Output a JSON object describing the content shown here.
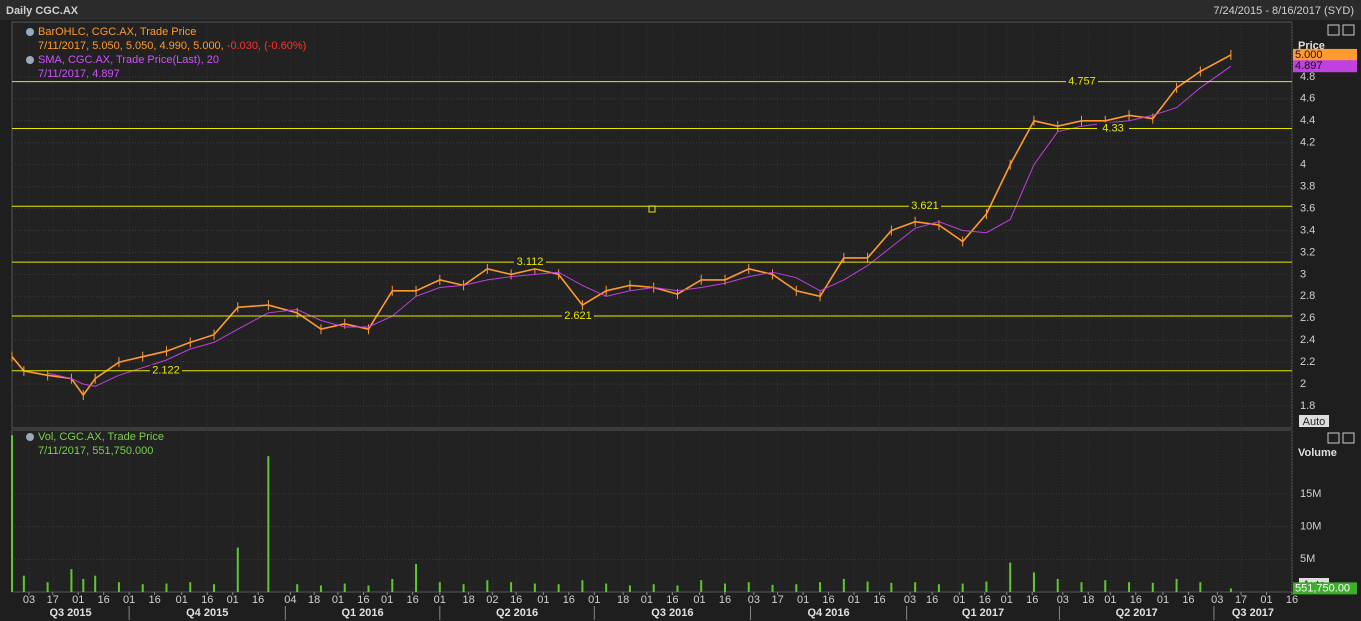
{
  "header": {
    "title": "Daily CGC.AX",
    "range": "7/24/2015 - 8/16/2017 (SYD)"
  },
  "chart_data": [
    {
      "type": "line",
      "y_label": "Price",
      "auto": "Auto",
      "xlim": [
        "7/24/2015",
        "8/16/2017"
      ],
      "x": [
        "7/24/2015",
        "7/31/2015",
        "8/14/2015",
        "8/28/2015",
        "9/4/2015",
        "9/11/2015",
        "9/25/2015",
        "10/9/2015",
        "10/23/2015",
        "11/6/2015",
        "11/20/2015",
        "12/4/2015",
        "12/22/2015",
        "1/8/2016",
        "1/22/2016",
        "2/5/2016",
        "2/19/2016",
        "3/4/2016",
        "3/18/2016",
        "4/1/2016",
        "4/15/2016",
        "4/29/2016",
        "5/13/2016",
        "5/27/2016",
        "6/10/2016",
        "6/24/2016",
        "7/8/2016",
        "7/22/2016",
        "8/5/2016",
        "8/19/2016",
        "9/2/2016",
        "9/16/2016",
        "9/30/2016",
        "10/14/2016",
        "10/28/2016",
        "11/11/2016",
        "11/25/2016",
        "12/9/2016",
        "12/23/2016",
        "1/6/2017",
        "1/20/2017",
        "2/3/2017",
        "2/17/2017",
        "3/3/2017",
        "3/17/2017",
        "3/31/2017",
        "4/14/2017",
        "4/28/2017",
        "5/12/2017",
        "5/26/2017",
        "6/9/2017",
        "6/23/2017",
        "7/11/2017"
      ],
      "series": [
        {
          "name": "BarOHLC, CGC.AX, Trade Price",
          "color": "#ff9a2e",
          "readout": "7/11/2017, 5.050, 5.050, 4.990, 5.000,",
          "change": "-0.030, (-0.60%)",
          "last_label": "5.000",
          "values": [
            2.25,
            2.12,
            2.08,
            2.05,
            1.9,
            2.05,
            2.2,
            2.25,
            2.3,
            2.38,
            2.45,
            2.7,
            2.72,
            2.65,
            2.5,
            2.55,
            2.5,
            2.85,
            2.85,
            2.95,
            2.9,
            3.05,
            3.0,
            3.05,
            3.0,
            2.72,
            2.85,
            2.9,
            2.88,
            2.82,
            2.95,
            2.95,
            3.05,
            3.0,
            2.85,
            2.8,
            3.15,
            3.15,
            3.4,
            3.48,
            3.45,
            3.3,
            3.55,
            4.0,
            4.4,
            4.35,
            4.4,
            4.4,
            4.45,
            4.42,
            4.7,
            4.85,
            5.0
          ]
        },
        {
          "name": "SMA, CGC.AX, Trade Price(Last), 20",
          "color": "#c040e0",
          "readout": "7/11/2017, 4.897",
          "last_label": "4.897",
          "values": [
            null,
            null,
            2.1,
            2.05,
            2.0,
            1.98,
            2.08,
            2.15,
            2.22,
            2.32,
            2.38,
            2.5,
            2.65,
            2.68,
            2.58,
            2.52,
            2.52,
            2.62,
            2.8,
            2.88,
            2.9,
            2.95,
            2.98,
            3.0,
            3.02,
            2.9,
            2.8,
            2.85,
            2.88,
            2.85,
            2.88,
            2.92,
            2.98,
            3.02,
            2.97,
            2.85,
            2.95,
            3.08,
            3.25,
            3.42,
            3.48,
            3.4,
            3.38,
            3.5,
            4.0,
            4.3,
            4.35,
            4.38,
            4.4,
            4.45,
            4.52,
            4.7,
            4.897
          ]
        }
      ],
      "levels": [
        4.757,
        4.33,
        3.621,
        3.112,
        2.621,
        2.122
      ],
      "level_color": "#e8e800",
      "ylim": [
        1.6,
        5.3
      ],
      "yticks": [
        1.8,
        2,
        2.2,
        2.4,
        2.6,
        2.8,
        3,
        3.2,
        3.4,
        3.6,
        3.8,
        4,
        4.2,
        4.4,
        4.6,
        4.8
      ],
      "grid": true
    },
    {
      "type": "bar",
      "y_label": "Volume",
      "auto": "Auto",
      "xlim": [
        "7/24/2015",
        "8/16/2017"
      ],
      "x": [
        "7/24/2015",
        "7/31/2015",
        "8/14/2015",
        "8/28/2015",
        "9/4/2015",
        "9/11/2015",
        "9/25/2015",
        "10/9/2015",
        "10/23/2015",
        "11/6/2015",
        "11/20/2015",
        "12/4/2015",
        "12/22/2015",
        "1/8/2016",
        "1/22/2016",
        "2/5/2016",
        "2/19/2016",
        "3/4/2016",
        "3/18/2016",
        "4/1/2016",
        "4/15/2016",
        "4/29/2016",
        "5/13/2016",
        "5/27/2016",
        "6/10/2016",
        "6/24/2016",
        "7/8/2016",
        "7/22/2016",
        "8/5/2016",
        "8/19/2016",
        "9/2/2016",
        "9/16/2016",
        "9/30/2016",
        "10/14/2016",
        "10/28/2016",
        "11/11/2016",
        "11/25/2016",
        "12/9/2016",
        "12/23/2016",
        "1/6/2017",
        "1/20/2017",
        "2/3/2017",
        "2/17/2017",
        "3/3/2017",
        "3/17/2017",
        "3/31/2017",
        "4/14/2017",
        "4/28/2017",
        "5/12/2017",
        "5/26/2017",
        "6/9/2017",
        "6/23/2017",
        "7/11/2017"
      ],
      "series": [
        {
          "name": "Vol, CGC.AX, Trade Price",
          "color": "#5ec82e",
          "readout": "7/11/2017, 551,750.000",
          "last_label": "551,750.00",
          "values": [
            24000000,
            2500000,
            1500000,
            3500000,
            2000000,
            2500000,
            1500000,
            1200000,
            1300000,
            1500000,
            1200000,
            6800000,
            20800000,
            1200000,
            1000000,
            1300000,
            1000000,
            2000000,
            4300000,
            1500000,
            1200000,
            1800000,
            1500000,
            1300000,
            1200000,
            1800000,
            1300000,
            1000000,
            1200000,
            1000000,
            1800000,
            1300000,
            1500000,
            1100000,
            1200000,
            1500000,
            2000000,
            1600000,
            1400000,
            1500000,
            1200000,
            1300000,
            1600000,
            4500000,
            3000000,
            2000000,
            1500000,
            1800000,
            1500000,
            1400000,
            2000000,
            1500000,
            551750
          ]
        }
      ],
      "ylim": [
        0,
        24800000
      ],
      "yticks": [
        {
          "value": 5000000,
          "label": "5M"
        },
        {
          "value": 10000000,
          "label": "10M"
        },
        {
          "value": 15000000,
          "label": "15M"
        }
      ],
      "grid": true,
      "xticks": [
        {
          "value": "8/3/2015",
          "label": "03"
        },
        {
          "value": "8/17/2015",
          "label": "17"
        },
        {
          "value": "9/1/2015",
          "label": "01"
        },
        {
          "value": "9/16/2015",
          "label": "16"
        },
        {
          "value": "10/1/2015",
          "label": "01"
        },
        {
          "value": "10/16/2015",
          "label": "16"
        },
        {
          "value": "11/1/2015",
          "label": "01"
        },
        {
          "value": "11/16/2015",
          "label": "16"
        },
        {
          "value": "12/1/2015",
          "label": "01"
        },
        {
          "value": "12/16/2015",
          "label": "16"
        },
        {
          "value": "1/4/2016",
          "label": "04"
        },
        {
          "value": "1/18/2016",
          "label": "18"
        },
        {
          "value": "2/1/2016",
          "label": "01"
        },
        {
          "value": "2/16/2016",
          "label": "16"
        },
        {
          "value": "3/1/2016",
          "label": "01"
        },
        {
          "value": "3/16/2016",
          "label": "16"
        },
        {
          "value": "4/1/2016",
          "label": "01"
        },
        {
          "value": "4/18/2016",
          "label": "18"
        },
        {
          "value": "5/2/2016",
          "label": "02"
        },
        {
          "value": "5/16/2016",
          "label": "16"
        },
        {
          "value": "6/1/2016",
          "label": "01"
        },
        {
          "value": "6/16/2016",
          "label": "16"
        },
        {
          "value": "7/1/2016",
          "label": "01"
        },
        {
          "value": "7/18/2016",
          "label": "18"
        },
        {
          "value": "8/1/2016",
          "label": "01"
        },
        {
          "value": "8/16/2016",
          "label": "16"
        },
        {
          "value": "9/1/2016",
          "label": "01"
        },
        {
          "value": "9/16/2016",
          "label": "16"
        },
        {
          "value": "10/3/2016",
          "label": "03"
        },
        {
          "value": "10/17/2016",
          "label": "17"
        },
        {
          "value": "11/1/2016",
          "label": "01"
        },
        {
          "value": "11/16/2016",
          "label": "16"
        },
        {
          "value": "12/1/2016",
          "label": "01"
        },
        {
          "value": "12/16/2016",
          "label": "16"
        },
        {
          "value": "1/3/2017",
          "label": "03"
        },
        {
          "value": "1/16/2017",
          "label": "16"
        },
        {
          "value": "2/1/2017",
          "label": "01"
        },
        {
          "value": "2/16/2017",
          "label": "16"
        },
        {
          "value": "3/1/2017",
          "label": "01"
        },
        {
          "value": "3/16/2017",
          "label": "16"
        },
        {
          "value": "4/3/2017",
          "label": "03"
        },
        {
          "value": "4/18/2017",
          "label": "18"
        },
        {
          "value": "5/1/2017",
          "label": "01"
        },
        {
          "value": "5/16/2017",
          "label": "16"
        },
        {
          "value": "6/1/2017",
          "label": "01"
        },
        {
          "value": "6/16/2017",
          "label": "16"
        },
        {
          "value": "7/3/2017",
          "label": "03"
        },
        {
          "value": "7/17/2017",
          "label": "17"
        },
        {
          "value": "8/1/2017",
          "label": "01"
        },
        {
          "value": "8/16/2017",
          "label": "16"
        }
      ],
      "quarters": [
        "Q3 2015",
        "Q4 2015",
        "Q1 2016",
        "Q2 2016",
        "Q3 2016",
        "Q4 2016",
        "Q1 2017",
        "Q2 2017",
        "Q3 2017"
      ]
    }
  ]
}
